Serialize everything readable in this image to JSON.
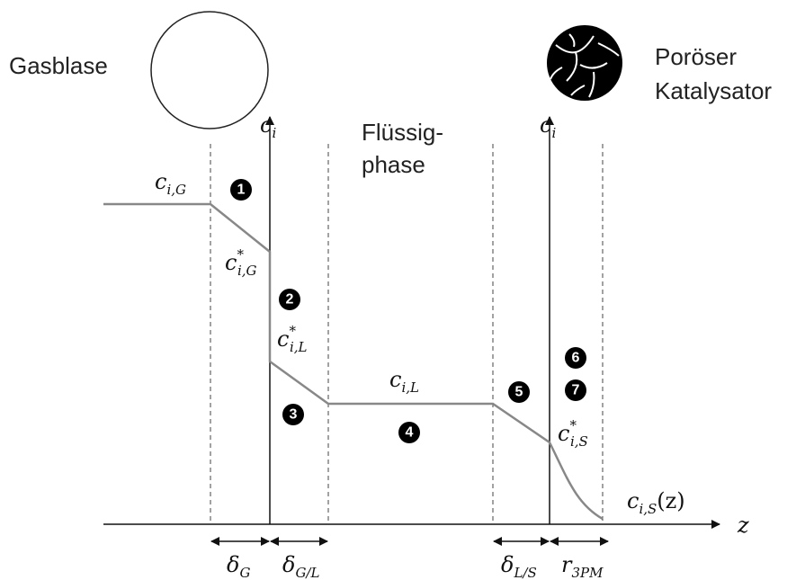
{
  "texts": {
    "gas_bubble": "Gasblase",
    "catalyst": [
      "Poröser",
      "Katalysator"
    ],
    "liquid": [
      "Flüssig-",
      "phase"
    ],
    "z_axis": "z"
  },
  "axis_labels": [
    {
      "main": "c",
      "sub": "i"
    },
    {
      "main": "c",
      "sub": "i"
    }
  ],
  "concentrations": [
    {
      "main": "c",
      "sub": "i,G"
    },
    {
      "main": "c",
      "sup": "*",
      "sub": "i,G"
    },
    {
      "main": "c",
      "sup": "*",
      "sub": "i,L"
    },
    {
      "main": "c",
      "sub": "i,L"
    },
    {
      "main": "c",
      "sup": "*",
      "sub": "i,S"
    },
    {
      "main": "c",
      "sub": "i,S",
      "suffix": "(z)"
    }
  ],
  "steps": [
    "1",
    "2",
    "3",
    "4",
    "5",
    "6",
    "7"
  ],
  "film_widths": [
    {
      "main": "δ",
      "sub": "G"
    },
    {
      "main": "δ",
      "sub": "G/L"
    },
    {
      "main": "δ",
      "sub": "L/S"
    },
    {
      "main": "r",
      "sub": "3PM"
    }
  ]
}
